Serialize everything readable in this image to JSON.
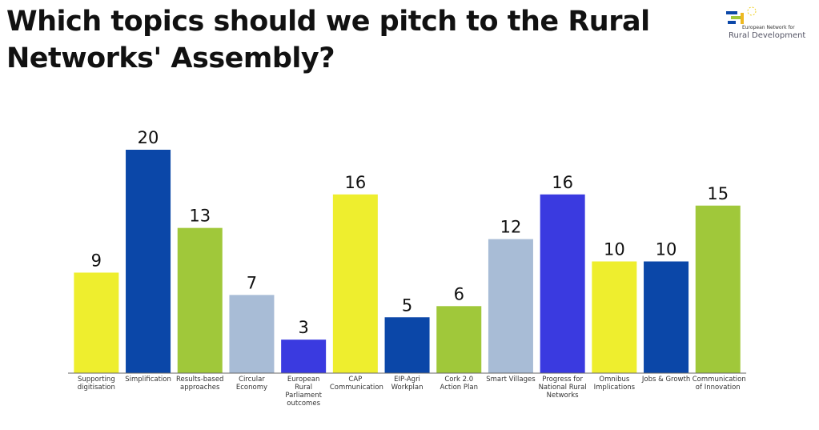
{
  "chart_data": {
    "type": "bar",
    "title": "Which topics should we pitch to the Rural Networks' Assembly?",
    "categories": [
      "Supporting digitisation",
      "Simplification",
      "Results-based approaches",
      "Circular Economy",
      "European Rural Parliament outcomes",
      "CAP Communication",
      "EIP-Agri Workplan",
      "Cork 2.0 Action Plan",
      "Smart Villages",
      "Progress for National Rural Networks",
      "Omnibus Implications",
      "Jobs & Growth",
      "Communication of Innovation"
    ],
    "values": [
      9,
      20,
      13,
      7,
      3,
      16,
      5,
      6,
      12,
      16,
      10,
      10,
      15
    ],
    "colors": [
      "#eeee2e",
      "#0b47a8",
      "#a0c83a",
      "#a8bcd6",
      "#3a3ae0",
      "#eeee2e",
      "#0b47a8",
      "#a0c83a",
      "#a8bcd6",
      "#3a3ae0",
      "#eeee2e",
      "#0b47a8",
      "#a0c83a"
    ]
  },
  "logo": {
    "line1": "European Network for",
    "line2": "Rural Development"
  }
}
